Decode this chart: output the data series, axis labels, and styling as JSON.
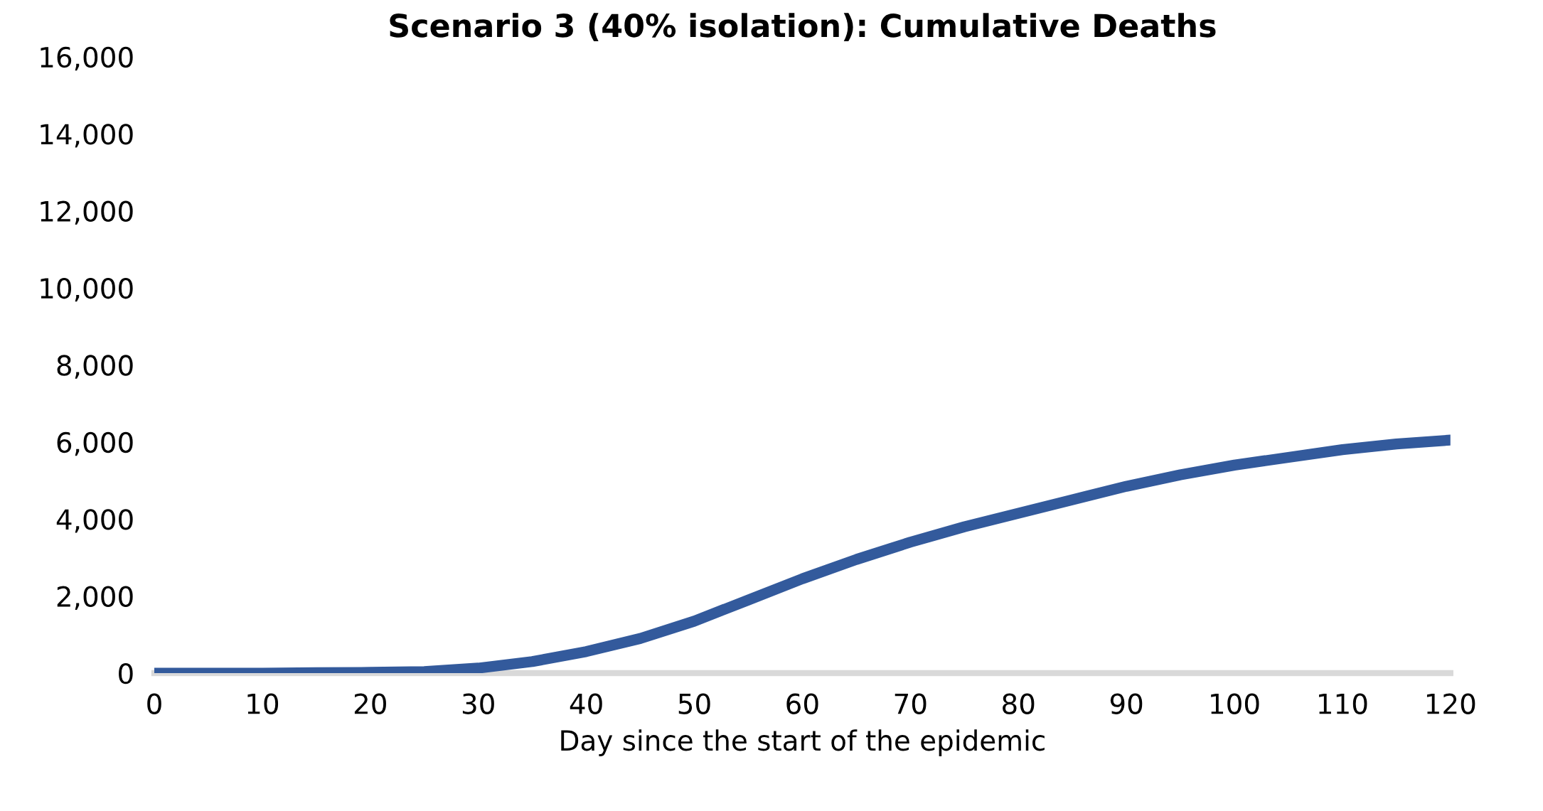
{
  "chart_data": {
    "type": "line",
    "title": "Scenario 3 (40% isolation): Cumulative Deaths",
    "xlabel": "Day since the start of the epidemic",
    "x": [
      0,
      5,
      10,
      15,
      20,
      25,
      30,
      35,
      40,
      45,
      50,
      55,
      60,
      65,
      70,
      75,
      80,
      85,
      90,
      95,
      100,
      105,
      110,
      115,
      120
    ],
    "series": [
      {
        "color": "#335a9c",
        "values": [
          0,
          0,
          0,
          10,
          20,
          40,
          130,
          300,
          560,
          900,
          1350,
          1900,
          2450,
          2950,
          3400,
          3800,
          4150,
          4500,
          4850,
          5150,
          5400,
          5600,
          5800,
          5950,
          6050
        ]
      }
    ],
    "xlim": [
      0,
      120
    ],
    "xticks": [
      0,
      10,
      20,
      30,
      40,
      50,
      60,
      70,
      80,
      90,
      100,
      110,
      120
    ],
    "ylim": [
      0,
      16000
    ],
    "yticks": [
      {
        "value": 0,
        "label": "0"
      },
      {
        "value": 2000,
        "label": "2,000"
      },
      {
        "value": 4000,
        "label": "4,000"
      },
      {
        "value": 6000,
        "label": "6,000"
      },
      {
        "value": 8000,
        "label": "8,000"
      },
      {
        "value": 10000,
        "label": "10,000"
      },
      {
        "value": 12000,
        "label": "12,000"
      },
      {
        "value": 14000,
        "label": "14,000"
      },
      {
        "value": 16000,
        "label": "16,000"
      }
    ],
    "grid": false,
    "legend": false,
    "marker": "none",
    "line_style": "solid"
  }
}
